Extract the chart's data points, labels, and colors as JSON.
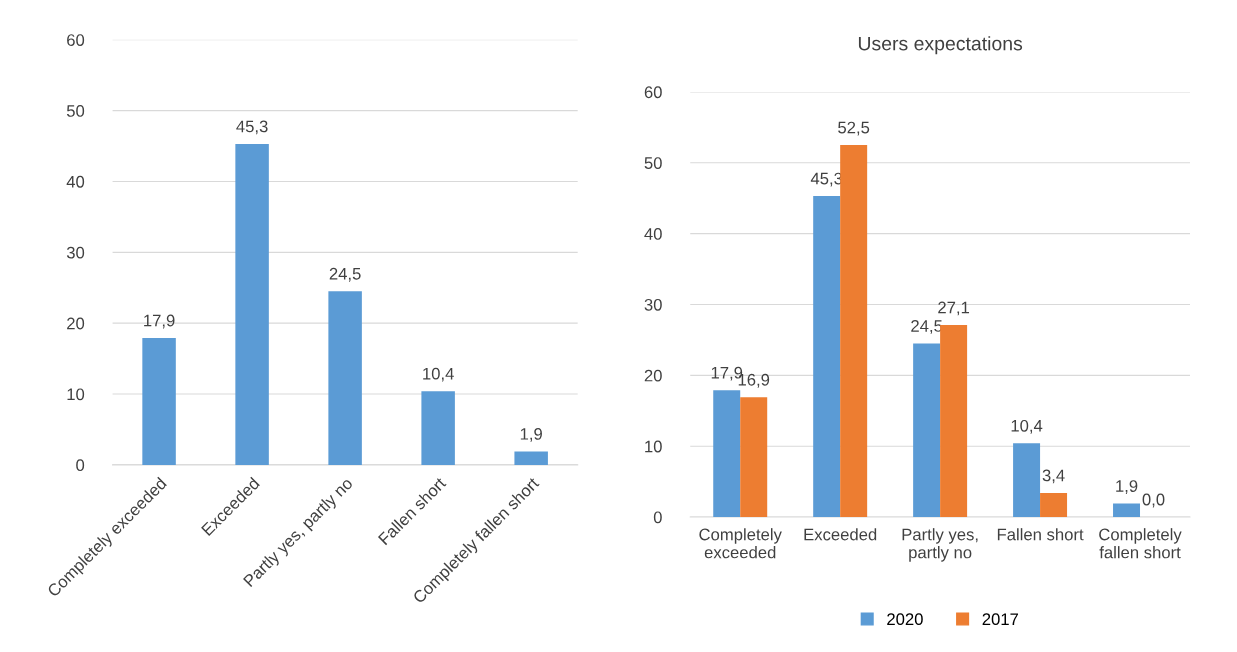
{
  "chart_data": [
    {
      "type": "bar",
      "categories": [
        "Completely exceeded",
        "Exceeded",
        "Partly yes, partly no",
        "Fallen short",
        "Completely fallen short"
      ],
      "series": [
        {
          "color": "#5b9bd5",
          "values": [
            17.9,
            45.3,
            24.5,
            10.4,
            1.9
          ],
          "value_labels": [
            "17,9",
            "45,3",
            "24,5",
            "10,4",
            "1,9"
          ]
        }
      ],
      "ylim": [
        0,
        60
      ],
      "yticks": [
        0,
        10,
        20,
        30,
        40,
        50,
        60
      ],
      "grid": "y",
      "legend": false
    },
    {
      "type": "bar",
      "title": "Users expectations",
      "categories": [
        "Completely exceeded",
        "Exceeded",
        "Partly yes, partly no",
        "Fallen short",
        "Completely fallen short"
      ],
      "series": [
        {
          "name": "2020",
          "color": "#5b9bd5",
          "values": [
            17.9,
            45.3,
            24.5,
            10.4,
            1.9
          ],
          "value_labels": [
            "17,9",
            "45,3",
            "24,5",
            "10,4",
            "1,9"
          ]
        },
        {
          "name": "2017",
          "color": "#ed7d31",
          "values": [
            16.9,
            52.5,
            27.1,
            3.4,
            0.0
          ],
          "value_labels": [
            "16,9",
            "52,5",
            "27,1",
            "3,4",
            "0,0"
          ]
        }
      ],
      "ylim": [
        0,
        60
      ],
      "yticks": [
        0,
        10,
        20,
        30,
        40,
        50,
        60
      ],
      "grid": "y",
      "legend": "bottom"
    }
  ]
}
